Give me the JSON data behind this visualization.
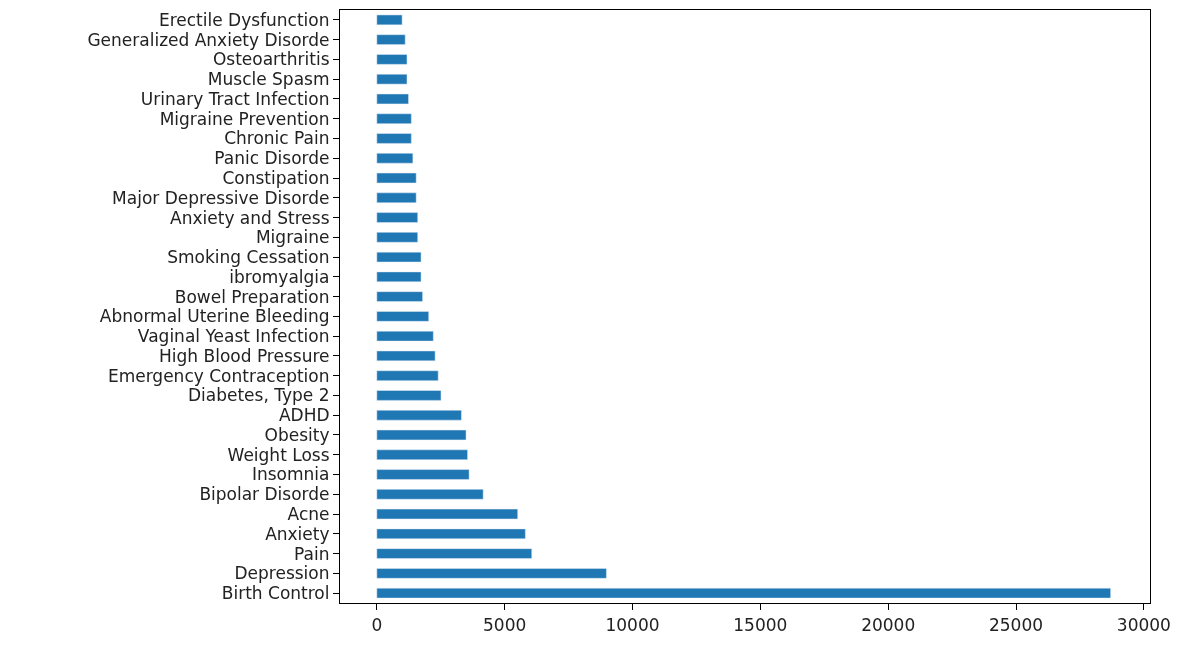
{
  "chart_data": {
    "type": "bar",
    "orientation": "horizontal",
    "color": "#1f77b4",
    "legend": false,
    "categories": [
      "Erectile Dysfunction",
      "Generalized Anxiety Disorde",
      "Osteoarthritis",
      "Muscle Spasm",
      "Urinary Tract Infection",
      "Migraine Prevention",
      "Chronic Pain",
      "Panic Disorde",
      "Constipation",
      "Major Depressive Disorde",
      "Anxiety and Stress",
      "Migraine",
      "Smoking Cessation",
      "ibromyalgia",
      "Bowel Preparation",
      "Abnormal Uterine Bleeding",
      "Vaginal Yeast Infection",
      "High Blood Pressure",
      "Emergency Contraception",
      "Diabetes, Type 2",
      "ADHD",
      "Obesity",
      "Weight Loss",
      "Insomnia",
      "Bipolar Disorde",
      "Acne",
      "Anxiety",
      "Pain",
      "Depression",
      "Birth Control"
    ],
    "values": [
      990,
      1110,
      1180,
      1180,
      1240,
      1350,
      1350,
      1410,
      1540,
      1540,
      1600,
      1600,
      1730,
      1730,
      1790,
      2030,
      2210,
      2280,
      2400,
      2510,
      3310,
      3490,
      3550,
      3610,
      4160,
      5510,
      5810,
      6060,
      8980,
      28700
    ],
    "xlim": [
      -1440,
      30240
    ],
    "xticks": [
      0,
      5000,
      10000,
      15000,
      20000,
      25000,
      30000
    ]
  }
}
